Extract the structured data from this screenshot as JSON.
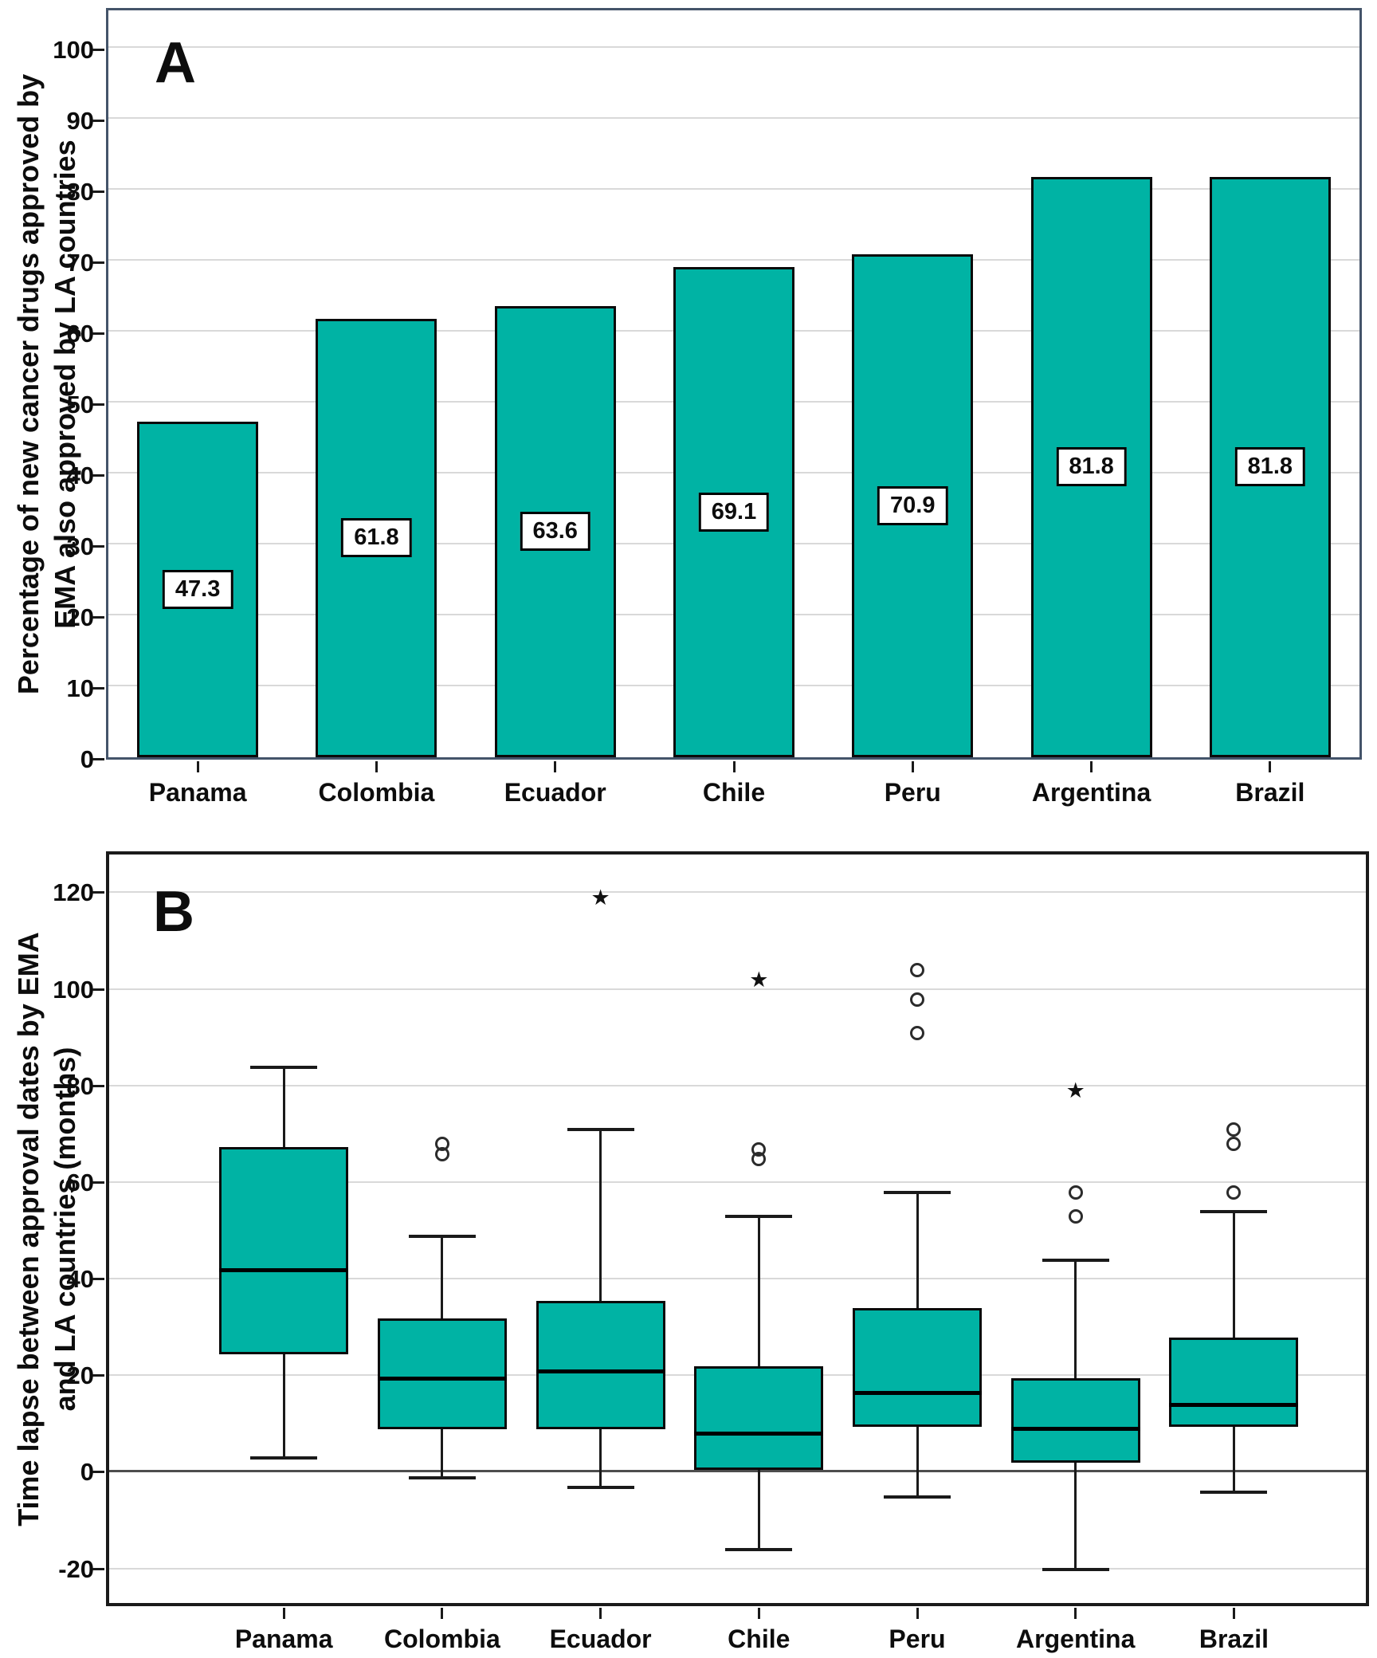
{
  "figure_colors": {
    "bar_fill": "#00b3a4",
    "panel_a_border": "#44546a",
    "panel_b_border": "#1a1a1a",
    "gridline": "#d9d9d9"
  },
  "chart_data": [
    {
      "type": "bar",
      "panel_label": "A",
      "ylabel": "Percentage of new cancer drugs approved by EMA also approved by LA countries",
      "ylabel_lines": [
        "Percentage of new cancer drugs approved by",
        "EMA also approved by LA countries"
      ],
      "xlabel": "",
      "categories": [
        "Panama",
        "Colombia",
        "Ecuador",
        "Chile",
        "Peru",
        "Argentina",
        "Brazil"
      ],
      "values": [
        47.3,
        61.8,
        63.6,
        69.1,
        70.9,
        81.8,
        81.8
      ],
      "bar_labels": [
        "47.3",
        "61.8",
        "63.6",
        "69.1",
        "70.9",
        "81.8",
        "81.8"
      ],
      "ylim": [
        0,
        106
      ],
      "yticks": [
        0,
        10,
        20,
        30,
        40,
        50,
        60,
        70,
        80,
        90,
        100
      ],
      "grid": true,
      "legend": null
    },
    {
      "type": "boxplot",
      "panel_label": "B",
      "ylabel": "Time lapse between approval dates by EMA and LA countries (months)",
      "ylabel_lines": [
        "Time lapse between approval dates by EMA",
        "and LA countries (months)"
      ],
      "xlabel": "",
      "categories": [
        "Panama",
        "Colombia",
        "Ecuador",
        "Chile",
        "Peru",
        "Argentina",
        "Brazil"
      ],
      "ylim": [
        -27,
        128
      ],
      "yticks": [
        -20,
        0,
        20,
        40,
        60,
        80,
        100,
        120
      ],
      "grid": true,
      "zero_line": 0,
      "series": [
        {
          "name": "Panama",
          "whisker_low": 3,
          "q1": 24.5,
          "median": 42,
          "q3": 67.5,
          "whisker_high": 84,
          "outliers": [],
          "extremes": []
        },
        {
          "name": "Colombia",
          "whisker_low": -1,
          "q1": 9,
          "median": 19.5,
          "q3": 32,
          "whisker_high": 49,
          "outliers": [
            68,
            66
          ],
          "extremes": []
        },
        {
          "name": "Ecuador",
          "whisker_low": -3,
          "q1": 9,
          "median": 21,
          "q3": 35.5,
          "whisker_high": 71,
          "outliers": [],
          "extremes": [
            119
          ]
        },
        {
          "name": "Chile",
          "whisker_low": -16,
          "q1": 0.5,
          "median": 8,
          "q3": 22,
          "whisker_high": 53,
          "outliers": [
            67,
            65
          ],
          "extremes": [
            102
          ]
        },
        {
          "name": "Peru",
          "whisker_low": -5,
          "q1": 9.5,
          "median": 16.5,
          "q3": 34,
          "whisker_high": 58,
          "outliers": [
            104,
            98,
            91
          ],
          "extremes": []
        },
        {
          "name": "Argentina",
          "whisker_low": -20,
          "q1": 2,
          "median": 9,
          "q3": 19.5,
          "whisker_high": 44,
          "outliers": [
            58,
            53
          ],
          "extremes": [
            79
          ]
        },
        {
          "name": "Brazil",
          "whisker_low": -4,
          "q1": 9.5,
          "median": 14,
          "q3": 28,
          "whisker_high": 54,
          "outliers": [
            71,
            68,
            58
          ],
          "extremes": []
        }
      ]
    }
  ]
}
